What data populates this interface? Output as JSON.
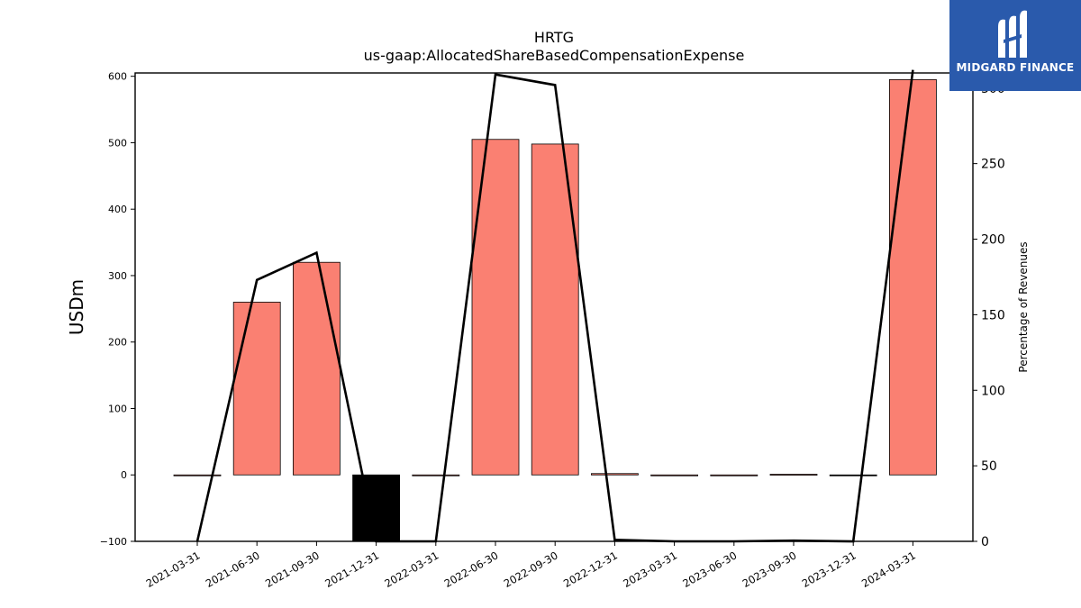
{
  "title": "HRTG",
  "subtitle": "us-gaap:AllocatedShareBasedCompensationExpense",
  "logo": {
    "text": "MIDGARD FINANCE",
    "color": "#2a5aac"
  },
  "colors": {
    "positive_bar": "#fa8072",
    "negative_bar": "#000000",
    "line": "#000000"
  },
  "chart_data": {
    "type": "bar",
    "categories": [
      "2021-03-31",
      "2021-06-30",
      "2021-09-30",
      "2021-12-31",
      "2022-03-31",
      "2022-06-30",
      "2022-09-30",
      "2022-12-31",
      "2023-03-31",
      "2023-06-30",
      "2023-09-30",
      "2023-12-31",
      "2024-03-31"
    ],
    "ylabel": "USDm",
    "ylim": [
      -100,
      605
    ],
    "yticks": [
      -100,
      0,
      100,
      200,
      300,
      400,
      500,
      600
    ],
    "y2label": "Percentage of Revenues",
    "y2lim": [
      0,
      310
    ],
    "y2ticks": [
      0,
      50,
      100,
      150,
      200,
      250,
      300
    ],
    "series": [
      {
        "axis": "left",
        "type": "bar",
        "values": [
          0,
          260,
          320,
          -100,
          0,
          505,
          498,
          2,
          0,
          0,
          1,
          -1,
          595
        ]
      },
      {
        "axis": "right",
        "type": "line",
        "values": [
          0,
          173,
          191,
          0,
          0,
          309,
          302,
          1,
          0,
          0,
          0.5,
          0,
          312
        ]
      }
    ]
  }
}
